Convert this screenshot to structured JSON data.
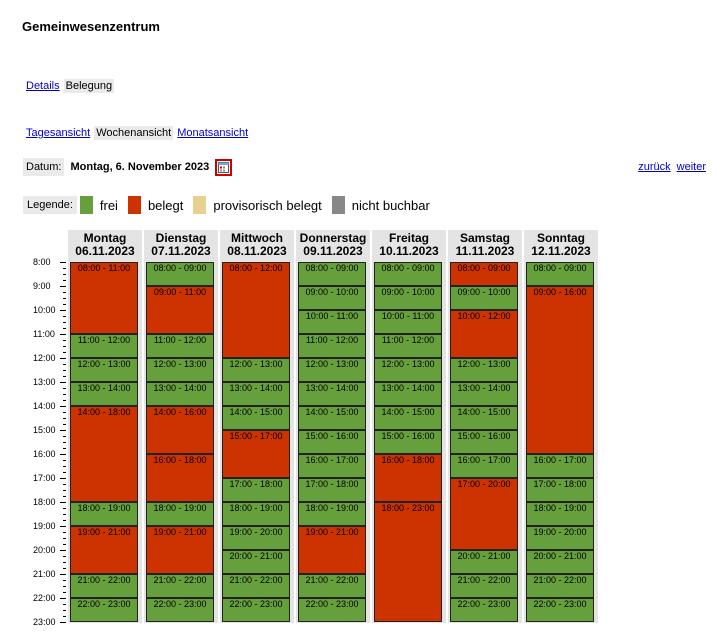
{
  "title": "Gemeinwesenzentrum",
  "tabs1": {
    "details": "Details",
    "belegung": "Belegung"
  },
  "tabs2": {
    "tag": "Tagesansicht",
    "woche": "Wochenansicht",
    "monat": "Monatsansicht"
  },
  "datum": {
    "label": "Datum:",
    "value": "Montag, 6. November 2023"
  },
  "nav": {
    "back": "zurück",
    "forward": "weiter"
  },
  "legend": {
    "label": "Legende:",
    "items": [
      {
        "label": "frei",
        "color": "#66a03c"
      },
      {
        "label": "belegt",
        "color": "#cc3300"
      },
      {
        "label": "provisorisch belegt",
        "color": "#e8d18f"
      },
      {
        "label": "nicht buchbar",
        "color": "#888888"
      }
    ]
  },
  "hours": [
    "8:00",
    "9:00",
    "10:00",
    "11:00",
    "12:00",
    "13:00",
    "14:00",
    "15:00",
    "16:00",
    "17:00",
    "18:00",
    "19:00",
    "20:00",
    "21:00",
    "22:00",
    "23:00"
  ],
  "days": [
    {
      "name": "Montag",
      "date": "06.11.2023",
      "slots": [
        {
          "label": "08:00 - 11:00",
          "status": "belegt",
          "start": 8,
          "end": 11
        },
        {
          "label": "11:00 - 12:00",
          "status": "frei",
          "start": 11,
          "end": 12
        },
        {
          "label": "12:00 - 13:00",
          "status": "frei",
          "start": 12,
          "end": 13
        },
        {
          "label": "13:00 - 14:00",
          "status": "frei",
          "start": 13,
          "end": 14
        },
        {
          "label": "14:00 - 18:00",
          "status": "belegt",
          "start": 14,
          "end": 18
        },
        {
          "label": "18:00 - 19:00",
          "status": "frei",
          "start": 18,
          "end": 19
        },
        {
          "label": "19:00 - 21:00",
          "status": "belegt",
          "start": 19,
          "end": 21
        },
        {
          "label": "21:00 - 22:00",
          "status": "frei",
          "start": 21,
          "end": 22
        },
        {
          "label": "22:00 - 23:00",
          "status": "frei",
          "start": 22,
          "end": 23
        }
      ]
    },
    {
      "name": "Dienstag",
      "date": "07.11.2023",
      "slots": [
        {
          "label": "08:00 - 09:00",
          "status": "frei",
          "start": 8,
          "end": 9
        },
        {
          "label": "09:00 - 11:00",
          "status": "belegt",
          "start": 9,
          "end": 11
        },
        {
          "label": "11:00 - 12:00",
          "status": "frei",
          "start": 11,
          "end": 12
        },
        {
          "label": "12:00 - 13:00",
          "status": "frei",
          "start": 12,
          "end": 13
        },
        {
          "label": "13:00 - 14:00",
          "status": "frei",
          "start": 13,
          "end": 14
        },
        {
          "label": "14:00 - 16:00",
          "status": "belegt",
          "start": 14,
          "end": 16
        },
        {
          "label": "16:00 - 18:00",
          "status": "belegt",
          "start": 16,
          "end": 18
        },
        {
          "label": "18:00 - 19:00",
          "status": "frei",
          "start": 18,
          "end": 19
        },
        {
          "label": "19:00 - 21:00",
          "status": "belegt",
          "start": 19,
          "end": 21
        },
        {
          "label": "21:00 - 22:00",
          "status": "frei",
          "start": 21,
          "end": 22
        },
        {
          "label": "22:00 - 23:00",
          "status": "frei",
          "start": 22,
          "end": 23
        }
      ]
    },
    {
      "name": "Mittwoch",
      "date": "08.11.2023",
      "slots": [
        {
          "label": "08:00 - 12:00",
          "status": "belegt",
          "start": 8,
          "end": 12
        },
        {
          "label": "12:00 - 13:00",
          "status": "frei",
          "start": 12,
          "end": 13
        },
        {
          "label": "13:00 - 14:00",
          "status": "frei",
          "start": 13,
          "end": 14
        },
        {
          "label": "14:00 - 15:00",
          "status": "frei",
          "start": 14,
          "end": 15
        },
        {
          "label": "15:00 - 17:00",
          "status": "belegt",
          "start": 15,
          "end": 17
        },
        {
          "label": "17:00 - 18:00",
          "status": "frei",
          "start": 17,
          "end": 18
        },
        {
          "label": "18:00 - 19:00",
          "status": "frei",
          "start": 18,
          "end": 19
        },
        {
          "label": "19:00 - 20:00",
          "status": "frei",
          "start": 19,
          "end": 20
        },
        {
          "label": "20:00 - 21:00",
          "status": "frei",
          "start": 20,
          "end": 21
        },
        {
          "label": "21:00 - 22:00",
          "status": "frei",
          "start": 21,
          "end": 22
        },
        {
          "label": "22:00 - 23:00",
          "status": "frei",
          "start": 22,
          "end": 23
        }
      ]
    },
    {
      "name": "Donnerstag",
      "date": "09.11.2023",
      "slots": [
        {
          "label": "08:00 - 09:00",
          "status": "frei",
          "start": 8,
          "end": 9
        },
        {
          "label": "09:00 - 10:00",
          "status": "frei",
          "start": 9,
          "end": 10
        },
        {
          "label": "10:00 - 11:00",
          "status": "frei",
          "start": 10,
          "end": 11
        },
        {
          "label": "11:00 - 12:00",
          "status": "frei",
          "start": 11,
          "end": 12
        },
        {
          "label": "12:00 - 13:00",
          "status": "frei",
          "start": 12,
          "end": 13
        },
        {
          "label": "13:00 - 14:00",
          "status": "frei",
          "start": 13,
          "end": 14
        },
        {
          "label": "14:00 - 15:00",
          "status": "frei",
          "start": 14,
          "end": 15
        },
        {
          "label": "15:00 - 16:00",
          "status": "frei",
          "start": 15,
          "end": 16
        },
        {
          "label": "16:00 - 17:00",
          "status": "frei",
          "start": 16,
          "end": 17
        },
        {
          "label": "17:00 - 18:00",
          "status": "frei",
          "start": 17,
          "end": 18
        },
        {
          "label": "18:00 - 19:00",
          "status": "frei",
          "start": 18,
          "end": 19
        },
        {
          "label": "19:00 - 21:00",
          "status": "belegt",
          "start": 19,
          "end": 21
        },
        {
          "label": "21:00 - 22:00",
          "status": "frei",
          "start": 21,
          "end": 22
        },
        {
          "label": "22:00 - 23:00",
          "status": "frei",
          "start": 22,
          "end": 23
        }
      ]
    },
    {
      "name": "Freitag",
      "date": "10.11.2023",
      "slots": [
        {
          "label": "08:00 - 09:00",
          "status": "frei",
          "start": 8,
          "end": 9
        },
        {
          "label": "09:00 - 10:00",
          "status": "frei",
          "start": 9,
          "end": 10
        },
        {
          "label": "10:00 - 11:00",
          "status": "frei",
          "start": 10,
          "end": 11
        },
        {
          "label": "11:00 - 12:00",
          "status": "frei",
          "start": 11,
          "end": 12
        },
        {
          "label": "12:00 - 13:00",
          "status": "frei",
          "start": 12,
          "end": 13
        },
        {
          "label": "13:00 - 14:00",
          "status": "frei",
          "start": 13,
          "end": 14
        },
        {
          "label": "14:00 - 15:00",
          "status": "frei",
          "start": 14,
          "end": 15
        },
        {
          "label": "15:00 - 16:00",
          "status": "frei",
          "start": 15,
          "end": 16
        },
        {
          "label": "16:00 - 18:00",
          "status": "belegt",
          "start": 16,
          "end": 18
        },
        {
          "label": "18:00 - 23:00",
          "status": "belegt",
          "start": 18,
          "end": 23
        }
      ]
    },
    {
      "name": "Samstag",
      "date": "11.11.2023",
      "slots": [
        {
          "label": "08:00 - 09:00",
          "status": "belegt",
          "start": 8,
          "end": 9
        },
        {
          "label": "09:00 - 10:00",
          "status": "frei",
          "start": 9,
          "end": 10
        },
        {
          "label": "10:00 - 12:00",
          "status": "belegt",
          "start": 10,
          "end": 12
        },
        {
          "label": "12:00 - 13:00",
          "status": "frei",
          "start": 12,
          "end": 13
        },
        {
          "label": "13:00 - 14:00",
          "status": "frei",
          "start": 13,
          "end": 14
        },
        {
          "label": "14:00 - 15:00",
          "status": "frei",
          "start": 14,
          "end": 15
        },
        {
          "label": "15:00 - 16:00",
          "status": "frei",
          "start": 15,
          "end": 16
        },
        {
          "label": "16:00 - 17:00",
          "status": "frei",
          "start": 16,
          "end": 17
        },
        {
          "label": "17:00 - 20:00",
          "status": "belegt",
          "start": 17,
          "end": 20
        },
        {
          "label": "20:00 - 21:00",
          "status": "frei",
          "start": 20,
          "end": 21
        },
        {
          "label": "21:00 - 22:00",
          "status": "frei",
          "start": 21,
          "end": 22
        },
        {
          "label": "22:00 - 23:00",
          "status": "frei",
          "start": 22,
          "end": 23
        }
      ]
    },
    {
      "name": "Sonntag",
      "date": "12.11.2023",
      "slots": [
        {
          "label": "08:00 - 09:00",
          "status": "frei",
          "start": 8,
          "end": 9
        },
        {
          "label": "09:00 - 16:00",
          "status": "belegt",
          "start": 9,
          "end": 16
        },
        {
          "label": "16:00 - 17:00",
          "status": "frei",
          "start": 16,
          "end": 17
        },
        {
          "label": "17:00 - 18:00",
          "status": "frei",
          "start": 17,
          "end": 18
        },
        {
          "label": "18:00 - 19:00",
          "status": "frei",
          "start": 18,
          "end": 19
        },
        {
          "label": "19:00 - 20:00",
          "status": "frei",
          "start": 19,
          "end": 20
        },
        {
          "label": "20:00 - 21:00",
          "status": "frei",
          "start": 20,
          "end": 21
        },
        {
          "label": "21:00 - 22:00",
          "status": "frei",
          "start": 21,
          "end": 22
        },
        {
          "label": "22:00 - 23:00",
          "status": "frei",
          "start": 22,
          "end": 23
        }
      ]
    }
  ]
}
